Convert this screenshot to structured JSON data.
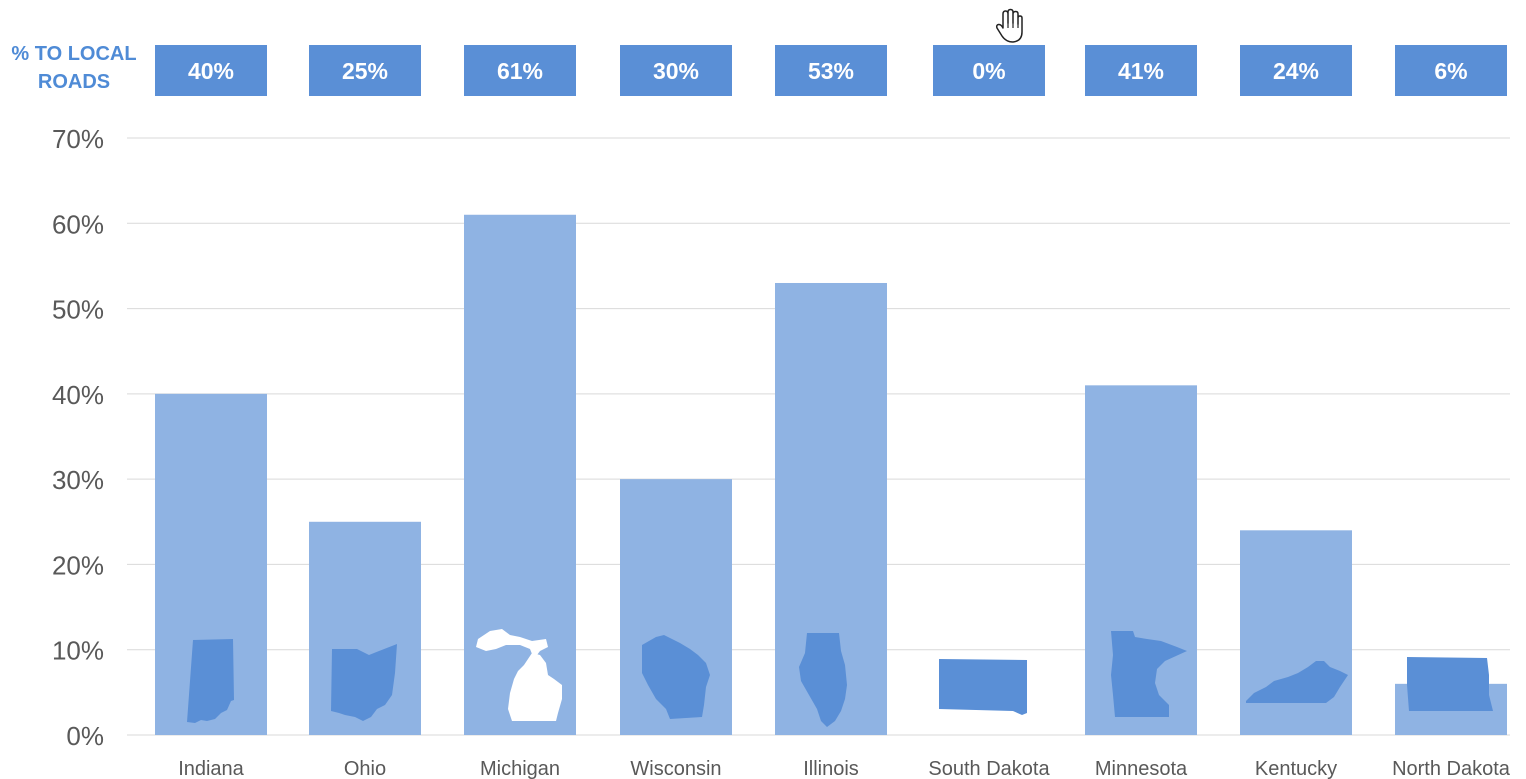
{
  "header": {
    "label_line1": "% TO LOCAL",
    "label_line2": "ROADS"
  },
  "chart_data": {
    "type": "bar",
    "categories": [
      "Indiana",
      "Ohio",
      "Michigan",
      "Wisconsin",
      "Illinois",
      "South Dakota",
      "Minnesota",
      "Kentucky",
      "North Dakota"
    ],
    "values": [
      40,
      25,
      61,
      30,
      53,
      0,
      41,
      24,
      6
    ],
    "value_labels": [
      "40%",
      "25%",
      "61%",
      "30%",
      "53%",
      "0%",
      "41%",
      "24%",
      "6%"
    ],
    "y_ticks": [
      "0%",
      "10%",
      "20%",
      "30%",
      "40%",
      "50%",
      "60%",
      "70%"
    ],
    "ylim": [
      0,
      70
    ],
    "grid": true,
    "legend": "none",
    "colors": {
      "bar": "#8fb3e3",
      "label_box": "#5a8fd6",
      "label_text": "#ffffff",
      "state_shape": "#5a8fd6",
      "state_shape_highlight": "#ffffff",
      "grid": "#d9d9d9",
      "axis_text": "#595959"
    },
    "icons": [
      "indiana-shape-icon",
      "ohio-shape-icon",
      "michigan-shape-icon",
      "wisconsin-shape-icon",
      "illinois-shape-icon",
      "south-dakota-shape-icon",
      "minnesota-shape-icon",
      "kentucky-shape-icon",
      "north-dakota-shape-icon"
    ]
  },
  "cursor": {
    "icon": "hand-cursor-icon"
  }
}
